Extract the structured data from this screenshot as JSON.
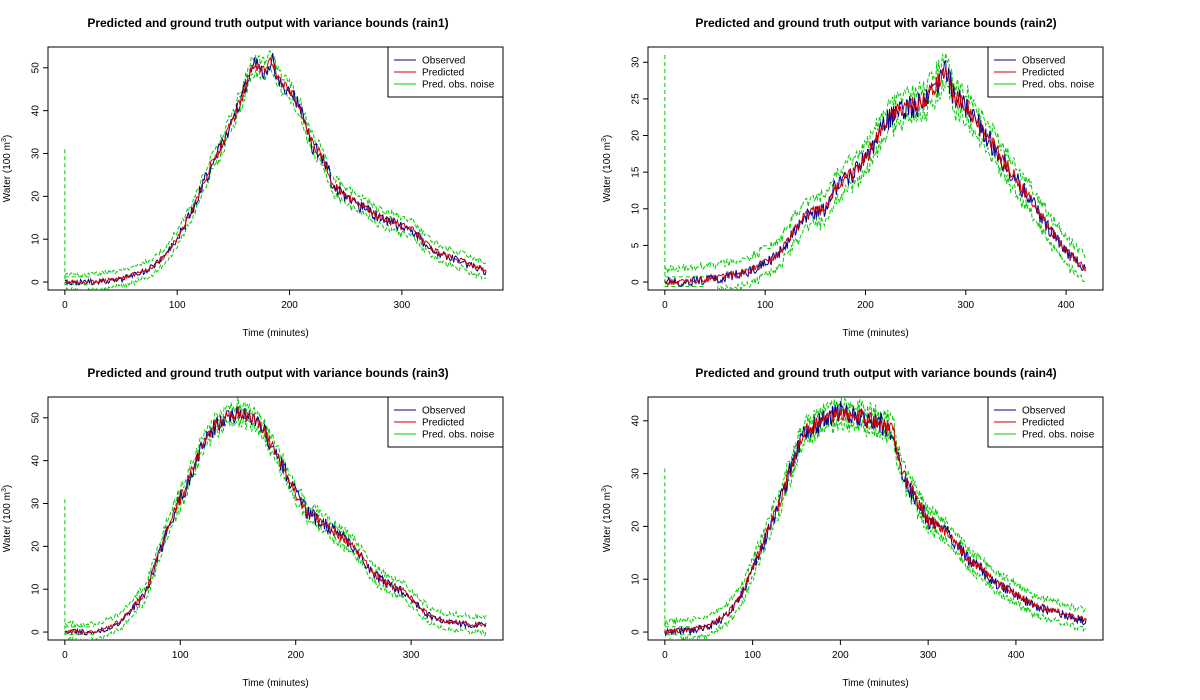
{
  "legend": {
    "entries": [
      {
        "label": "Observed",
        "color": "#00008b"
      },
      {
        "label": "Predicted",
        "color": "#cc0000"
      },
      {
        "label": "Pred. obs. noise",
        "color": "#00cc00"
      }
    ],
    "placement": "top-right"
  },
  "colors": {
    "observed": "#00008b",
    "predicted": "#cc0000",
    "noise": "#00cc00"
  },
  "chart_data": [
    {
      "type": "line",
      "title": "Predicted and ground truth output with variance bounds (rain1)",
      "xlabel": "Time (minutes)",
      "ylabel": "Water (100 m^3)",
      "xlim": [
        0,
        375
      ],
      "ylim": [
        0,
        53
      ],
      "xticks": [
        0,
        100,
        200,
        300
      ],
      "yticks": [
        0,
        10,
        20,
        30,
        40,
        50
      ],
      "init_bounds": [
        31,
        1.2,
        -0.6
      ],
      "grid": false,
      "legend": "top-right",
      "x": [
        0,
        25,
        50,
        75,
        90,
        100,
        110,
        120,
        130,
        140,
        150,
        160,
        165,
        170,
        175,
        180,
        185,
        190,
        200,
        210,
        220,
        230,
        240,
        250,
        260,
        270,
        280,
        290,
        300,
        310,
        320,
        330,
        340,
        350,
        360,
        370,
        375
      ],
      "series": [
        {
          "name": "Observed",
          "values": [
            0,
            0,
            0.5,
            3,
            6,
            10,
            15,
            21,
            27,
            32,
            38,
            45,
            49,
            51,
            49,
            50,
            52,
            47,
            45,
            40,
            32,
            29,
            22,
            20,
            18,
            17,
            15,
            14,
            13,
            12,
            9,
            7,
            6,
            5,
            4,
            3,
            2
          ]
        },
        {
          "name": "Predicted",
          "values": [
            0,
            0,
            0.8,
            3.2,
            6.2,
            10.2,
            15.2,
            21.2,
            27.2,
            32.2,
            38.2,
            45.2,
            48.8,
            50.5,
            49.2,
            50.2,
            51.5,
            47.2,
            45.2,
            40.2,
            32.2,
            29.2,
            22.2,
            20.2,
            18.2,
            17.2,
            15.2,
            14.2,
            13.2,
            12.2,
            9.2,
            7.2,
            6.2,
            5.2,
            4.2,
            3.2,
            2.2
          ]
        },
        {
          "name": "Pred. obs. noise",
          "band": 1.8
        }
      ]
    },
    {
      "type": "line",
      "title": "Predicted and ground truth output with variance bounds (rain2)",
      "xlabel": "Time (minutes)",
      "ylabel": "Water (100 m^3)",
      "xlim": [
        0,
        420
      ],
      "ylim": [
        0,
        31
      ],
      "xticks": [
        0,
        100,
        200,
        300,
        400
      ],
      "yticks": [
        0,
        5,
        10,
        15,
        20,
        25,
        30
      ],
      "init_bounds": [
        31,
        0.7,
        -0.6
      ],
      "grid": false,
      "legend": "top-right",
      "x": [
        0,
        40,
        60,
        80,
        100,
        110,
        120,
        130,
        140,
        150,
        160,
        170,
        180,
        190,
        200,
        210,
        220,
        230,
        240,
        250,
        260,
        270,
        280,
        290,
        300,
        310,
        320,
        330,
        340,
        350,
        360,
        370,
        380,
        390,
        400,
        410,
        420
      ],
      "series": [
        {
          "name": "Observed",
          "values": [
            0,
            0.2,
            0.7,
            1.2,
            2.5,
            3.5,
            5,
            7,
            9,
            9.5,
            10,
            13,
            14,
            15,
            17,
            19,
            22,
            23,
            24,
            24,
            25,
            27,
            29,
            25,
            24,
            22,
            20,
            18,
            16,
            14,
            12,
            10,
            8,
            6,
            4,
            3,
            1.5
          ]
        },
        {
          "name": "Predicted",
          "values": [
            0,
            0.3,
            0.8,
            1.3,
            2.6,
            3.6,
            5.1,
            7.1,
            9.1,
            9.6,
            10.1,
            13.1,
            14.1,
            15.1,
            17.1,
            19.1,
            22.1,
            23.1,
            24.1,
            24.1,
            25.1,
            26.8,
            28.5,
            25.1,
            24.1,
            22.1,
            20.1,
            18.1,
            16.1,
            14.1,
            12.1,
            10.1,
            8.1,
            6.1,
            4.1,
            3.1,
            1.7
          ]
        },
        {
          "name": "Pred. obs. noise",
          "band": 1.8
        }
      ]
    },
    {
      "type": "line",
      "title": "Predicted and ground truth output with variance bounds (rain3)",
      "xlabel": "Time (minutes)",
      "ylabel": "Water (100 m^3)",
      "xlim": [
        0,
        365
      ],
      "ylim": [
        0,
        53
      ],
      "xticks": [
        0,
        100,
        200,
        300
      ],
      "yticks": [
        0,
        10,
        20,
        30,
        40,
        50
      ],
      "init_bounds": [
        31,
        1.2,
        -0.6
      ],
      "grid": false,
      "legend": "top-right",
      "x": [
        0,
        25,
        40,
        50,
        60,
        70,
        80,
        90,
        100,
        110,
        120,
        130,
        140,
        150,
        160,
        170,
        180,
        190,
        200,
        210,
        220,
        230,
        240,
        250,
        260,
        270,
        280,
        290,
        300,
        310,
        320,
        330,
        340,
        350,
        365
      ],
      "series": [
        {
          "name": "Observed",
          "values": [
            0,
            0,
            1,
            3,
            6,
            9,
            17,
            25,
            31,
            37,
            44,
            48,
            50,
            51,
            50,
            48,
            43,
            38,
            32,
            28,
            26,
            24,
            22,
            20,
            16,
            13,
            11,
            10,
            8,
            5,
            3,
            2.5,
            2,
            1.8,
            1.5
          ]
        },
        {
          "name": "Predicted",
          "values": [
            0,
            0,
            1.2,
            3.2,
            6.2,
            9.2,
            17.2,
            25.2,
            31.2,
            37.2,
            44.2,
            48.2,
            50.2,
            51.2,
            50.2,
            48.2,
            43.2,
            38.2,
            32.2,
            28.2,
            26.2,
            24.2,
            22.2,
            20.2,
            16.2,
            13.2,
            11.2,
            10.2,
            8.2,
            5.2,
            3.2,
            2.7,
            2.2,
            2,
            1.7
          ]
        },
        {
          "name": "Pred. obs. noise",
          "band": 1.8
        }
      ]
    },
    {
      "type": "line",
      "title": "Predicted and ground truth output with variance bounds (rain4)",
      "xlabel": "Time (minutes)",
      "ylabel": "Water (100 m^3)",
      "xlim": [
        0,
        480
      ],
      "ylim": [
        0,
        43
      ],
      "xticks": [
        0,
        100,
        200,
        300,
        400
      ],
      "yticks": [
        0,
        10,
        20,
        30,
        40
      ],
      "init_bounds": [
        31,
        1.0,
        -0.5
      ],
      "grid": false,
      "legend": "top-right",
      "x": [
        0,
        30,
        50,
        70,
        80,
        90,
        100,
        110,
        120,
        130,
        140,
        150,
        160,
        170,
        180,
        190,
        200,
        210,
        220,
        230,
        240,
        250,
        260,
        270,
        280,
        290,
        300,
        310,
        320,
        330,
        340,
        350,
        360,
        370,
        380,
        390,
        400,
        420,
        440,
        460,
        480
      ],
      "series": [
        {
          "name": "Observed",
          "values": [
            0,
            0.3,
            1,
            3,
            5,
            8,
            12,
            16,
            20,
            24,
            29,
            34,
            38,
            39,
            40,
            41,
            42,
            41,
            41,
            40,
            40,
            39,
            38,
            30,
            27,
            24,
            21,
            20,
            19,
            17,
            15,
            13,
            12,
            10,
            9,
            8,
            7,
            5,
            4,
            3,
            2
          ]
        },
        {
          "name": "Predicted",
          "values": [
            0,
            0.4,
            1.2,
            3.2,
            5.2,
            8.2,
            12.2,
            16.2,
            20.2,
            24.2,
            29.2,
            34.2,
            38.2,
            39.2,
            40.2,
            40.8,
            41.5,
            41,
            41,
            40.2,
            40.2,
            39.2,
            38.2,
            30.2,
            27.2,
            24.2,
            21.2,
            20.2,
            19.2,
            17.2,
            15.2,
            13.2,
            12.2,
            10.2,
            9.2,
            8.2,
            7.2,
            5.2,
            4.2,
            3.2,
            2.2
          ]
        },
        {
          "name": "Pred. obs. noise",
          "band": 1.8
        }
      ]
    }
  ]
}
